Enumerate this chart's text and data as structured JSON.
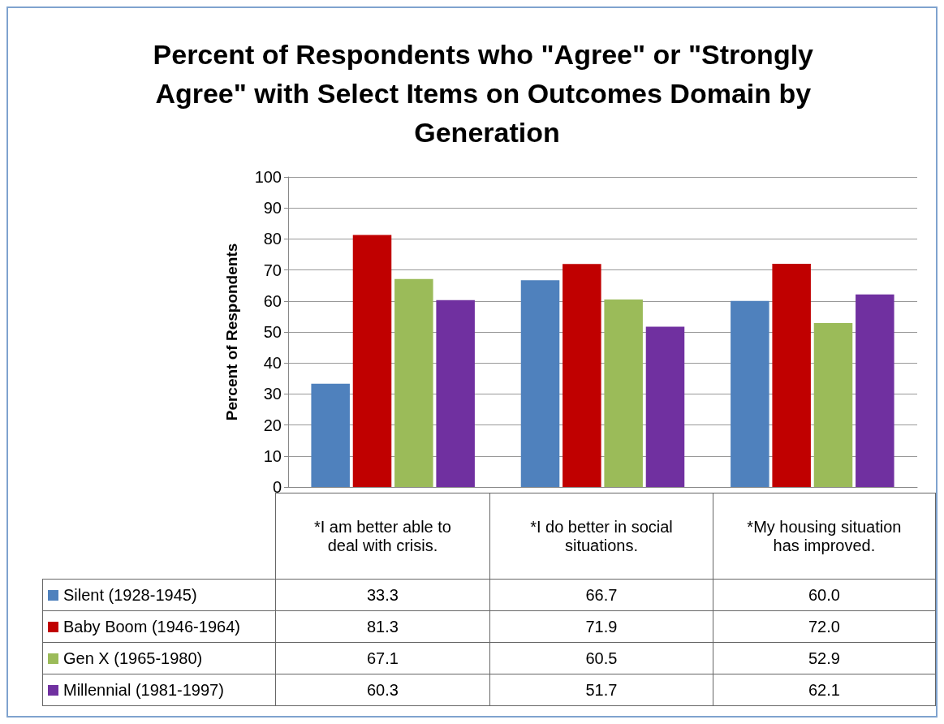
{
  "chart_data": {
    "type": "bar",
    "title": "Percent of Respondents who \"Agree\" or \"Strongly Agree\" with Select Items on Outcomes Domain by Generation",
    "ylabel": "Percent of Respondents",
    "categories": [
      "*I am better able to deal with crisis.",
      "*I do better in social situations.",
      "*My housing situation has improved."
    ],
    "series": [
      {
        "name": "Silent (1928-1945)",
        "color": "#4f81bd",
        "values": [
          33.3,
          66.7,
          60.0
        ],
        "value_labels": [
          "33.3",
          "66.7",
          "60.0"
        ]
      },
      {
        "name": "Baby Boom (1946-1964)",
        "color": "#c00000",
        "values": [
          81.3,
          71.9,
          72.0
        ],
        "value_labels": [
          "81.3",
          "71.9",
          "72.0"
        ]
      },
      {
        "name": "Gen X (1965-1980)",
        "color": "#9bbb59",
        "values": [
          67.1,
          60.5,
          52.9
        ],
        "value_labels": [
          "67.1",
          "60.5",
          "52.9"
        ]
      },
      {
        "name": "Millennial (1981-1997)",
        "color": "#7030a0",
        "values": [
          60.3,
          51.7,
          62.1
        ],
        "value_labels": [
          "60.3",
          "51.7",
          "62.1"
        ]
      }
    ],
    "ylim": [
      0,
      100
    ],
    "yticks": [
      0,
      10,
      20,
      30,
      40,
      50,
      60,
      70,
      80,
      90,
      100
    ],
    "grid": "y",
    "legend": "bottom"
  }
}
